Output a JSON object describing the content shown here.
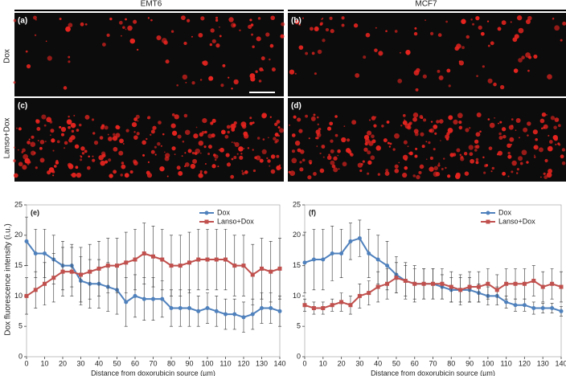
{
  "images": {
    "columns": [
      "EMT6",
      "MCF7"
    ],
    "rows": [
      "Dox",
      "Lanso+Dox"
    ],
    "panels": [
      "(a)",
      "(b)",
      "(c)",
      "(d)"
    ]
  },
  "chart_data": [
    {
      "type": "line",
      "panel": "(e)",
      "xlabel": "Distance from doxorubicin source (µm)",
      "ylabel": "Dox fluorescence intensity (i.u.)",
      "x": [
        0,
        5,
        10,
        15,
        20,
        25,
        30,
        35,
        40,
        45,
        50,
        55,
        60,
        65,
        70,
        75,
        80,
        85,
        90,
        95,
        100,
        105,
        110,
        115,
        120,
        125,
        130,
        135,
        140
      ],
      "series": [
        {
          "name": "Dox",
          "color": "#4f81bd",
          "values": [
            19,
            17,
            17,
            16,
            15,
            15,
            12.5,
            12,
            12,
            11.5,
            11,
            9,
            10,
            9.5,
            9.5,
            9.5,
            8,
            8,
            8,
            7.5,
            8,
            7.5,
            7,
            7,
            6.5,
            7,
            8,
            8,
            7.5
          ],
          "errors": [
            4,
            4,
            4,
            4,
            4,
            3.5,
            4,
            4,
            4,
            4,
            4,
            4,
            3.5,
            3.5,
            3.5,
            3,
            3,
            3,
            3,
            2.5,
            2.5,
            2.5,
            2.5,
            2.5,
            2.5,
            2.5,
            2.5,
            2.5,
            2.5
          ]
        },
        {
          "name": "Lanso+Dox",
          "color": "#c0504d",
          "values": [
            10,
            11,
            12,
            13,
            14,
            14,
            13.5,
            14,
            14.5,
            15,
            15,
            15.5,
            16,
            17,
            16.5,
            16,
            15,
            15,
            15.5,
            16,
            16,
            16,
            16,
            15,
            15,
            13.5,
            14.5,
            14,
            14.5
          ],
          "errors": [
            3,
            3,
            3.5,
            4,
            4,
            4,
            4.5,
            4.5,
            4.5,
            4.5,
            4.5,
            5,
            5,
            5,
            5,
            5,
            5,
            5,
            5,
            5,
            5,
            5,
            5,
            5,
            5,
            5,
            5,
            5,
            5
          ]
        }
      ],
      "xlim": [
        0,
        140
      ],
      "ylim": [
        0,
        25
      ],
      "xticks": [
        0,
        10,
        20,
        30,
        40,
        50,
        60,
        70,
        80,
        90,
        100,
        110,
        120,
        130,
        140
      ],
      "yticks": [
        0,
        5,
        10,
        15,
        20,
        25
      ],
      "legend": "upper right"
    },
    {
      "type": "line",
      "panel": "(f)",
      "xlabel": "Distance from doxorubicin source (µm)",
      "x": [
        0,
        5,
        10,
        15,
        20,
        25,
        30,
        35,
        40,
        45,
        50,
        55,
        60,
        65,
        70,
        75,
        80,
        85,
        90,
        95,
        100,
        105,
        110,
        115,
        120,
        125,
        130,
        135,
        140
      ],
      "series": [
        {
          "name": "Dox",
          "color": "#4f81bd",
          "values": [
            15.5,
            16,
            16,
            17,
            17,
            19,
            19.5,
            17,
            16,
            15,
            13.5,
            12.5,
            12,
            12,
            12,
            11.5,
            11,
            11,
            11,
            10.5,
            10,
            10,
            9,
            8.5,
            8.5,
            8,
            8,
            8,
            7.5
          ],
          "errors": [
            5,
            5,
            5,
            4.5,
            4,
            3,
            3,
            4,
            4,
            4,
            3,
            3,
            3,
            2.5,
            2.5,
            2,
            2,
            2,
            2,
            1.5,
            1.5,
            1.5,
            1,
            1,
            1,
            1,
            0.8,
            0.8,
            0.8
          ]
        },
        {
          "name": "Lanso+Dox",
          "color": "#c0504d",
          "values": [
            8.5,
            8,
            8,
            8.5,
            9,
            8.5,
            10,
            10.5,
            11.5,
            12,
            13,
            12.5,
            12,
            12,
            12,
            12,
            11.5,
            11,
            11.5,
            11.5,
            12,
            11,
            12,
            12,
            12,
            12.5,
            11.5,
            12,
            11.5
          ],
          "errors": [
            1,
            1,
            1,
            1,
            1.5,
            1.5,
            2,
            2,
            2.5,
            2.5,
            2.5,
            2.5,
            2.5,
            2.5,
            2.5,
            2.5,
            2.5,
            2.5,
            2.5,
            2.5,
            2.5,
            2.5,
            2.5,
            2.5,
            2.5,
            2.5,
            2.5,
            2.5,
            2.5
          ]
        }
      ],
      "xlim": [
        0,
        140
      ],
      "ylim": [
        0,
        25
      ],
      "xticks": [
        0,
        10,
        20,
        30,
        40,
        50,
        60,
        70,
        80,
        90,
        100,
        110,
        120,
        130,
        140
      ],
      "yticks": [
        0,
        5,
        10,
        15,
        20,
        25
      ],
      "legend": "upper right"
    }
  ]
}
